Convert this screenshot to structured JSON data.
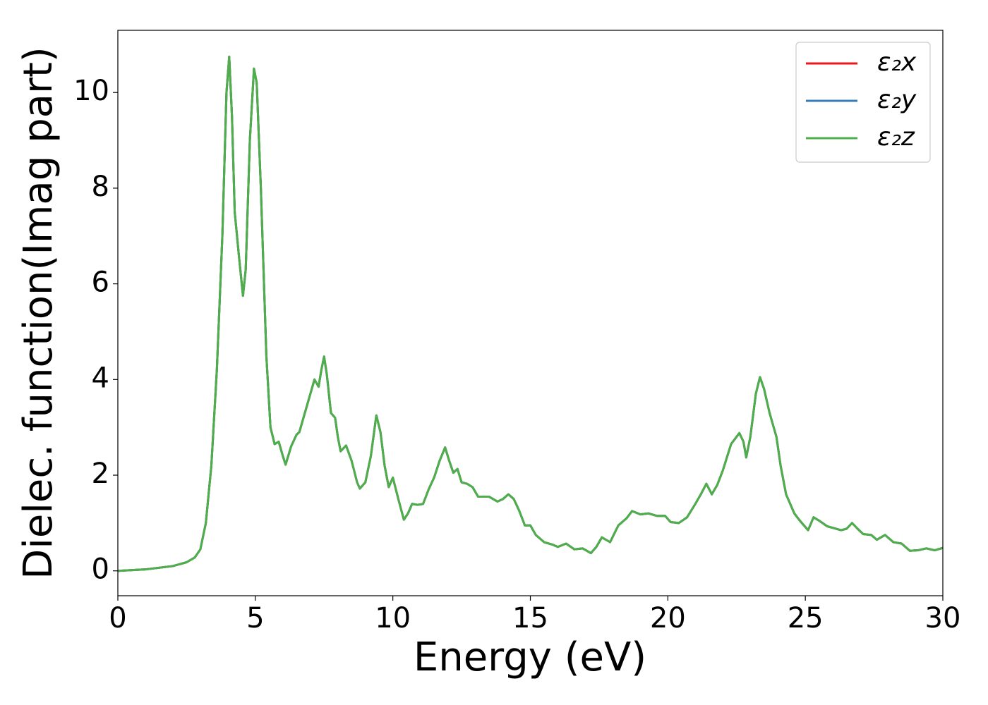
{
  "chart_data": {
    "type": "line",
    "xlabel": "Energy (eV)",
    "ylabel": "Dielec. function(Imag part)",
    "x": [
      0,
      1,
      2,
      2.5,
      2.8,
      3,
      3.2,
      3.4,
      3.6,
      3.8,
      3.95,
      4.05,
      4.15,
      4.25,
      4.4,
      4.55,
      4.65,
      4.8,
      4.95,
      5.05,
      5.2,
      5.4,
      5.55,
      5.7,
      5.85,
      6,
      6.1,
      6.3,
      6.5,
      6.6,
      6.8,
      7,
      7.15,
      7.3,
      7.4,
      7.5,
      7.6,
      7.75,
      7.9,
      8,
      8.1,
      8.3,
      8.5,
      8.7,
      8.8,
      9,
      9.2,
      9.4,
      9.55,
      9.7,
      9.85,
      10,
      10.2,
      10.4,
      10.55,
      10.7,
      10.9,
      11.1,
      11.3,
      11.5,
      11.7,
      11.9,
      12.05,
      12.2,
      12.35,
      12.5,
      12.7,
      12.9,
      13.1,
      13.3,
      13.5,
      13.8,
      14,
      14.2,
      14.4,
      14.6,
      14.8,
      15,
      15.2,
      15.5,
      15.8,
      16,
      16.3,
      16.6,
      16.9,
      17.2,
      17.4,
      17.6,
      17.9,
      18.2,
      18.5,
      18.7,
      19,
      19.3,
      19.6,
      19.9,
      20.1,
      20.4,
      20.7,
      21,
      21.2,
      21.4,
      21.6,
      21.8,
      22,
      22.3,
      22.6,
      22.75,
      22.85,
      23,
      23.2,
      23.35,
      23.5,
      23.7,
      23.95,
      24.1,
      24.3,
      24.6,
      24.8,
      25.1,
      25.3,
      25.5,
      25.8,
      26,
      26.3,
      26.5,
      26.7,
      26.9,
      27.1,
      27.4,
      27.6,
      27.9,
      28.2,
      28.5,
      28.8,
      29.1,
      29.4,
      29.7,
      30
    ],
    "series": [
      {
        "name": "ε₂x",
        "color": "#e41a1c",
        "values": [
          0,
          0.03,
          0.1,
          0.18,
          0.28,
          0.45,
          1.0,
          2.2,
          4.2,
          7.0,
          10.0,
          10.75,
          9.5,
          7.5,
          6.6,
          5.75,
          6.3,
          9.0,
          10.5,
          10.2,
          8.0,
          4.5,
          3.0,
          2.65,
          2.7,
          2.4,
          2.22,
          2.6,
          2.85,
          2.9,
          3.3,
          3.7,
          4.0,
          3.85,
          4.2,
          4.48,
          4.1,
          3.3,
          3.2,
          2.8,
          2.5,
          2.62,
          2.3,
          1.85,
          1.72,
          1.85,
          2.4,
          3.25,
          2.9,
          2.2,
          1.75,
          1.95,
          1.5,
          1.07,
          1.2,
          1.4,
          1.38,
          1.4,
          1.7,
          1.95,
          2.3,
          2.58,
          2.3,
          2.05,
          2.13,
          1.85,
          1.82,
          1.75,
          1.55,
          1.55,
          1.55,
          1.45,
          1.5,
          1.6,
          1.5,
          1.25,
          0.95,
          0.95,
          0.75,
          0.6,
          0.55,
          0.5,
          0.57,
          0.45,
          0.47,
          0.37,
          0.5,
          0.7,
          0.6,
          0.95,
          1.1,
          1.25,
          1.18,
          1.2,
          1.15,
          1.15,
          1.02,
          1.0,
          1.12,
          1.4,
          1.6,
          1.82,
          1.6,
          1.8,
          2.1,
          2.65,
          2.88,
          2.7,
          2.37,
          2.8,
          3.7,
          4.05,
          3.8,
          3.3,
          2.8,
          2.2,
          1.6,
          1.2,
          1.05,
          0.85,
          1.12,
          1.05,
          0.93,
          0.9,
          0.85,
          0.88,
          1.0,
          0.88,
          0.77,
          0.75,
          0.65,
          0.75,
          0.6,
          0.57,
          0.42,
          0.43,
          0.47,
          0.43,
          0.48
        ]
      },
      {
        "name": "ε₂y",
        "color": "#377eb8",
        "values": [
          0,
          0.03,
          0.1,
          0.18,
          0.28,
          0.45,
          1.0,
          2.2,
          4.2,
          7.0,
          10.0,
          10.75,
          9.5,
          7.5,
          6.6,
          5.75,
          6.3,
          9.0,
          10.5,
          10.2,
          8.0,
          4.5,
          3.0,
          2.65,
          2.7,
          2.4,
          2.22,
          2.6,
          2.85,
          2.9,
          3.3,
          3.7,
          4.0,
          3.85,
          4.2,
          4.48,
          4.1,
          3.3,
          3.2,
          2.8,
          2.5,
          2.62,
          2.3,
          1.85,
          1.72,
          1.85,
          2.4,
          3.25,
          2.9,
          2.2,
          1.75,
          1.95,
          1.5,
          1.07,
          1.2,
          1.4,
          1.38,
          1.4,
          1.7,
          1.95,
          2.3,
          2.58,
          2.3,
          2.05,
          2.13,
          1.85,
          1.82,
          1.75,
          1.55,
          1.55,
          1.55,
          1.45,
          1.5,
          1.6,
          1.5,
          1.25,
          0.95,
          0.95,
          0.75,
          0.6,
          0.55,
          0.5,
          0.57,
          0.45,
          0.47,
          0.37,
          0.5,
          0.7,
          0.6,
          0.95,
          1.1,
          1.25,
          1.18,
          1.2,
          1.15,
          1.15,
          1.02,
          1.0,
          1.12,
          1.4,
          1.6,
          1.82,
          1.6,
          1.8,
          2.1,
          2.65,
          2.88,
          2.7,
          2.37,
          2.8,
          3.7,
          4.05,
          3.8,
          3.3,
          2.8,
          2.2,
          1.6,
          1.2,
          1.05,
          0.85,
          1.12,
          1.05,
          0.93,
          0.9,
          0.85,
          0.88,
          1.0,
          0.88,
          0.77,
          0.75,
          0.65,
          0.75,
          0.6,
          0.57,
          0.42,
          0.43,
          0.47,
          0.43,
          0.48
        ]
      },
      {
        "name": "ε₂z",
        "color": "#4daf4a",
        "values": [
          0,
          0.03,
          0.1,
          0.18,
          0.28,
          0.45,
          1.0,
          2.2,
          4.2,
          7.0,
          10.0,
          10.75,
          9.5,
          7.5,
          6.6,
          5.75,
          6.3,
          9.0,
          10.5,
          10.2,
          8.0,
          4.5,
          3.0,
          2.65,
          2.7,
          2.4,
          2.22,
          2.6,
          2.85,
          2.9,
          3.3,
          3.7,
          4.0,
          3.85,
          4.2,
          4.48,
          4.1,
          3.3,
          3.2,
          2.8,
          2.5,
          2.62,
          2.3,
          1.85,
          1.72,
          1.85,
          2.4,
          3.25,
          2.9,
          2.2,
          1.75,
          1.95,
          1.5,
          1.07,
          1.2,
          1.4,
          1.38,
          1.4,
          1.7,
          1.95,
          2.3,
          2.58,
          2.3,
          2.05,
          2.13,
          1.85,
          1.82,
          1.75,
          1.55,
          1.55,
          1.55,
          1.45,
          1.5,
          1.6,
          1.5,
          1.25,
          0.95,
          0.95,
          0.75,
          0.6,
          0.55,
          0.5,
          0.57,
          0.45,
          0.47,
          0.37,
          0.5,
          0.7,
          0.6,
          0.95,
          1.1,
          1.25,
          1.18,
          1.2,
          1.15,
          1.15,
          1.02,
          1.0,
          1.12,
          1.4,
          1.6,
          1.82,
          1.6,
          1.8,
          2.1,
          2.65,
          2.88,
          2.7,
          2.37,
          2.8,
          3.7,
          4.05,
          3.8,
          3.3,
          2.8,
          2.2,
          1.6,
          1.2,
          1.05,
          0.85,
          1.12,
          1.05,
          0.93,
          0.9,
          0.85,
          0.88,
          1.0,
          0.88,
          0.77,
          0.75,
          0.65,
          0.75,
          0.6,
          0.57,
          0.42,
          0.43,
          0.47,
          0.43,
          0.48
        ]
      }
    ],
    "xlim": [
      0,
      30
    ],
    "xticks": [
      0,
      5,
      10,
      15,
      20,
      25,
      30
    ],
    "ylim": [
      -0.52,
      11.3
    ],
    "yticks": [
      0,
      2,
      4,
      6,
      8,
      10
    ],
    "grid": false,
    "legend": "upper right"
  }
}
